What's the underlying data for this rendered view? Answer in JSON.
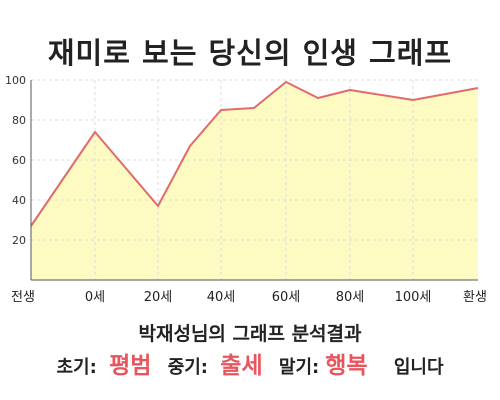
{
  "chart_data": {
    "type": "area",
    "title": "재미로 보는 당신의 인생 그래프",
    "xlabel": "",
    "ylabel": "",
    "x_tick_labels": [
      "전생",
      "0세",
      "20세",
      "40세",
      "60세",
      "80세",
      "100세",
      "환생"
    ],
    "y_ticks": [
      20,
      40,
      60,
      80,
      100
    ],
    "ylim": [
      0,
      100
    ],
    "grid": true,
    "series": [
      {
        "points": [
          {
            "x": "전생",
            "y": 27
          },
          {
            "x": "0세",
            "y": 74
          },
          {
            "x": "20세",
            "y": 37
          },
          {
            "x": "30세",
            "y": 67
          },
          {
            "x": "40세",
            "y": 85
          },
          {
            "x": "50세",
            "y": 86
          },
          {
            "x": "60세",
            "y": 99
          },
          {
            "x": "70세",
            "y": 91
          },
          {
            "x": "80세",
            "y": 95
          },
          {
            "x": "100세",
            "y": 90
          },
          {
            "x": "환생",
            "y": 96
          }
        ]
      }
    ],
    "colors": {
      "line": "#e26a6a",
      "fill": "#fdfbc2",
      "grid": "#dcdcdc",
      "axis": "#555555"
    }
  },
  "result": {
    "heading": "박재성님의 그래프 분석결과",
    "stages": [
      {
        "label": "초기:",
        "value": "평범"
      },
      {
        "label": "중기:",
        "value": "출세"
      },
      {
        "label": "말기:",
        "value": "행복"
      }
    ],
    "tail": "입니다"
  }
}
